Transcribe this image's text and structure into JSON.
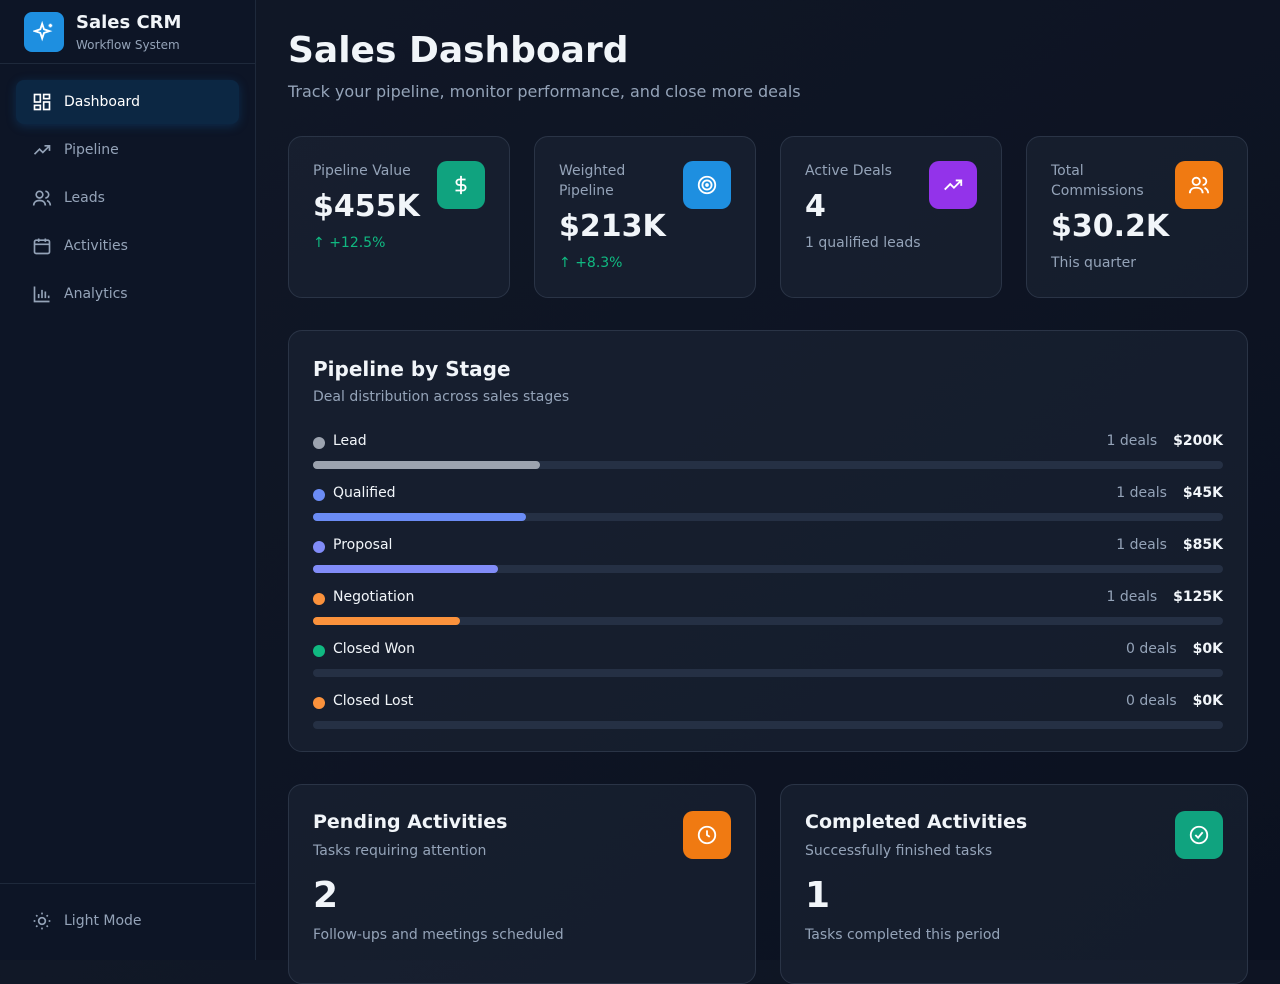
{
  "sidebar": {
    "brand": "Sales CRM",
    "subtitle": "Workflow System",
    "nav": [
      "Dashboard",
      "Pipeline",
      "Leads",
      "Activities",
      "Analytics"
    ],
    "footer": "Light Mode"
  },
  "header": {
    "title": "Sales Dashboard",
    "subtitle": "Track your pipeline, monitor performance, and close more deals"
  },
  "stats": [
    {
      "label": "Pipeline Value",
      "value": "$455K",
      "note": "+12.5%"
    },
    {
      "label": "Weighted Pipeline",
      "value": "$213K",
      "note": "+8.3%"
    },
    {
      "label": "Active Deals",
      "value": "4",
      "note": "1 qualified leads"
    },
    {
      "label": "Total Commissions",
      "value": "$30.2K",
      "note": "This quarter"
    }
  ],
  "pipeline": {
    "title": "Pipeline by Stage",
    "subtitle": "Deal distribution across sales stages",
    "stages": [
      {
        "name": "Lead",
        "deals": "1 deals",
        "amount": "$200K"
      },
      {
        "name": "Qualified",
        "deals": "1 deals",
        "amount": "$45K"
      },
      {
        "name": "Proposal",
        "deals": "1 deals",
        "amount": "$85K"
      },
      {
        "name": "Negotiation",
        "deals": "1 deals",
        "amount": "$125K"
      },
      {
        "name": "Closed Won",
        "deals": "0 deals",
        "amount": "$0K"
      },
      {
        "name": "Closed Lost",
        "deals": "0 deals",
        "amount": "$0K"
      }
    ]
  },
  "activities": [
    {
      "title": "Pending Activities",
      "subtitle": "Tasks requiring attention",
      "count": "2",
      "note": "Follow-ups and meetings scheduled"
    },
    {
      "title": "Completed Activities",
      "subtitle": "Successfully finished tasks",
      "count": "1",
      "note": "Tasks completed this period"
    }
  ]
}
